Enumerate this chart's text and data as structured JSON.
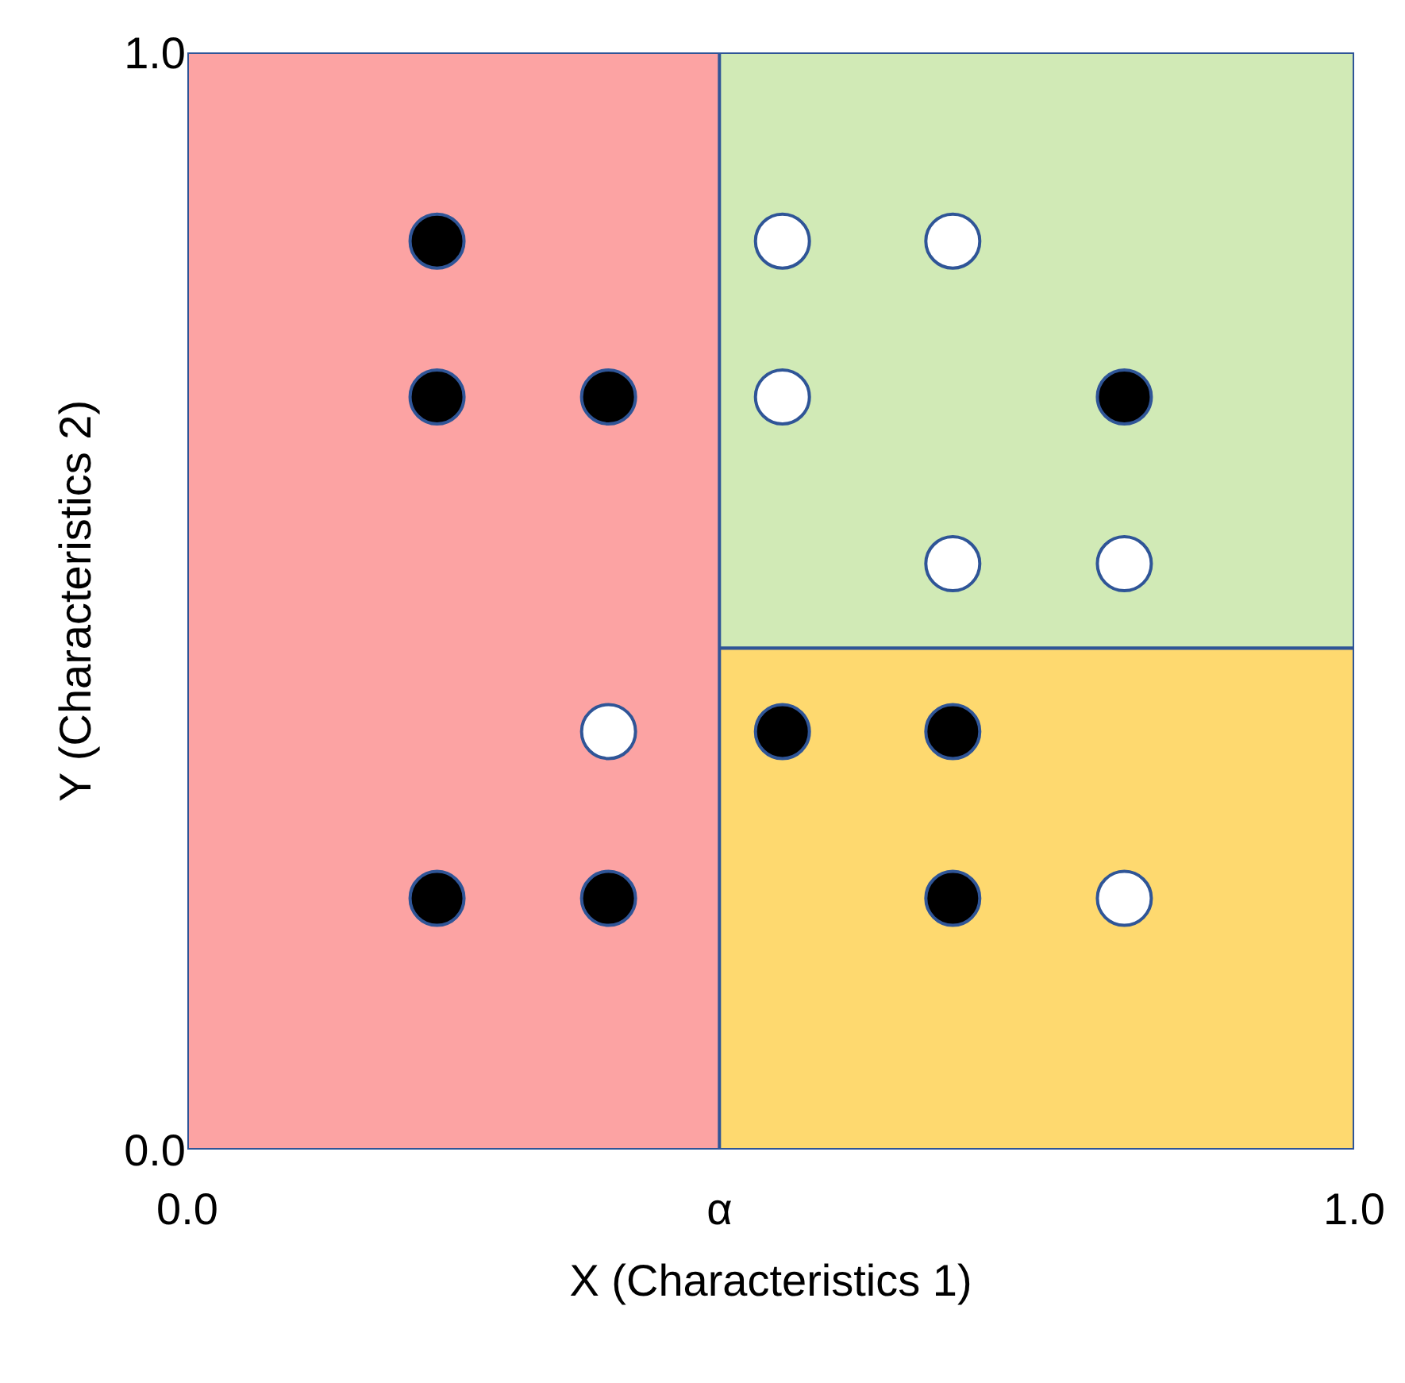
{
  "chart_data": {
    "type": "scatter",
    "xlabel": "X (Characteristics 1)",
    "ylabel": "Y (Characteristics 2)",
    "xlim": [
      0,
      1
    ],
    "ylim": [
      0,
      1
    ],
    "xticks": [
      {
        "value": 0,
        "label": "0.0"
      },
      {
        "value": 0.456,
        "label": "α"
      },
      {
        "value": 1,
        "label": "1.0"
      }
    ],
    "yticks": [
      {
        "value": 0,
        "label": "0.0"
      },
      {
        "value": 1,
        "label": "1.0"
      }
    ],
    "marker": "circle",
    "bands": [
      {
        "axis": "y",
        "from": 0.457,
        "to": 1,
        "color": "#d1eab6"
      },
      {
        "axis": "y",
        "from": 0,
        "to": 0.457,
        "color": "#fed96f"
      },
      {
        "axis": "x",
        "from": 0,
        "to": 0.456,
        "color": "#fca3a3"
      }
    ],
    "series": [
      {
        "color": "#000000",
        "x": [
          0.214,
          0.214,
          0.361,
          0.803,
          0.51,
          0.656,
          0.214,
          0.361,
          0.656
        ],
        "values": [
          0.828,
          0.686,
          0.686,
          0.686,
          0.381,
          0.381,
          0.229,
          0.229,
          0.229
        ]
      },
      {
        "color": "#ffffff",
        "x": [
          0.51,
          0.656,
          0.51,
          0.656,
          0.803,
          0.361,
          0.803
        ],
        "values": [
          0.828,
          0.828,
          0.686,
          0.534,
          0.534,
          0.381,
          0.229
        ]
      }
    ]
  }
}
